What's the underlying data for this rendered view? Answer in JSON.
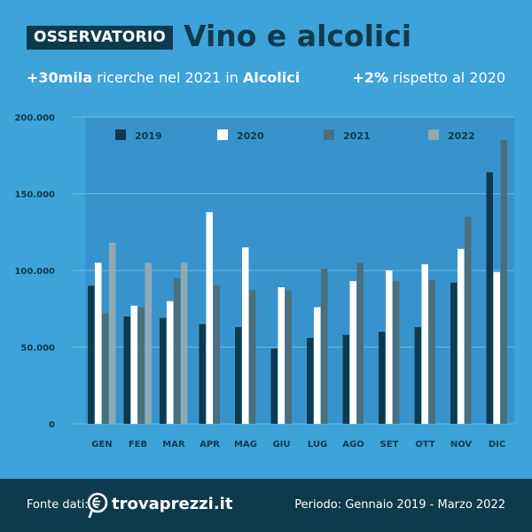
{
  "header": {
    "badge": "OSSERVATORIO",
    "title": "Vino e alcolici",
    "subtitle_left": {
      "highlight": "+30mila",
      "text": " ricerche nel 2021 in ",
      "category": "Alcolici"
    },
    "subtitle_right": {
      "highlight": "+2%",
      "text": " rispetto al 2020"
    }
  },
  "footer": {
    "source_label": "Fonte dati:",
    "brand": "trovaprezzi.it",
    "period": "Periodo: Gennaio 2019 - Marzo 2022"
  },
  "colors": {
    "background": "#3ea3d8",
    "plot_band": "#3893cc",
    "dark": "#0e3a4e",
    "s2019": "#0e3a4e",
    "s2020": "#ffffff",
    "s2021": "#4a6f7d",
    "s2022": "#8fa9b5"
  },
  "chart_data": {
    "type": "bar",
    "categories": [
      "GEN",
      "FEB",
      "MAR",
      "APR",
      "MAG",
      "GIU",
      "LUG",
      "AGO",
      "SET",
      "OTT",
      "NOV",
      "DIC"
    ],
    "series": [
      {
        "name": "2019",
        "values": [
          90000,
          70000,
          69000,
          65000,
          63000,
          49000,
          56000,
          58000,
          60000,
          63000,
          92000,
          164000
        ]
      },
      {
        "name": "2020",
        "values": [
          105000,
          77000,
          80000,
          138000,
          115000,
          89000,
          76000,
          93000,
          100000,
          104000,
          114000,
          99000
        ]
      },
      {
        "name": "2021",
        "values": [
          72000,
          76000,
          95000,
          90000,
          87000,
          87000,
          101000,
          105000,
          93000,
          94000,
          135000,
          185000
        ]
      },
      {
        "name": "2022",
        "values": [
          118000,
          105000,
          105000,
          null,
          null,
          null,
          null,
          null,
          null,
          null,
          null,
          null
        ]
      }
    ],
    "yticks": [
      "0",
      "50.000",
      "100.000",
      "150.000",
      "200.000"
    ],
    "ytick_values": [
      0,
      50000,
      100000,
      150000,
      200000
    ],
    "ylim": [
      0,
      200000
    ],
    "legend_placement": "top",
    "grid": true
  }
}
